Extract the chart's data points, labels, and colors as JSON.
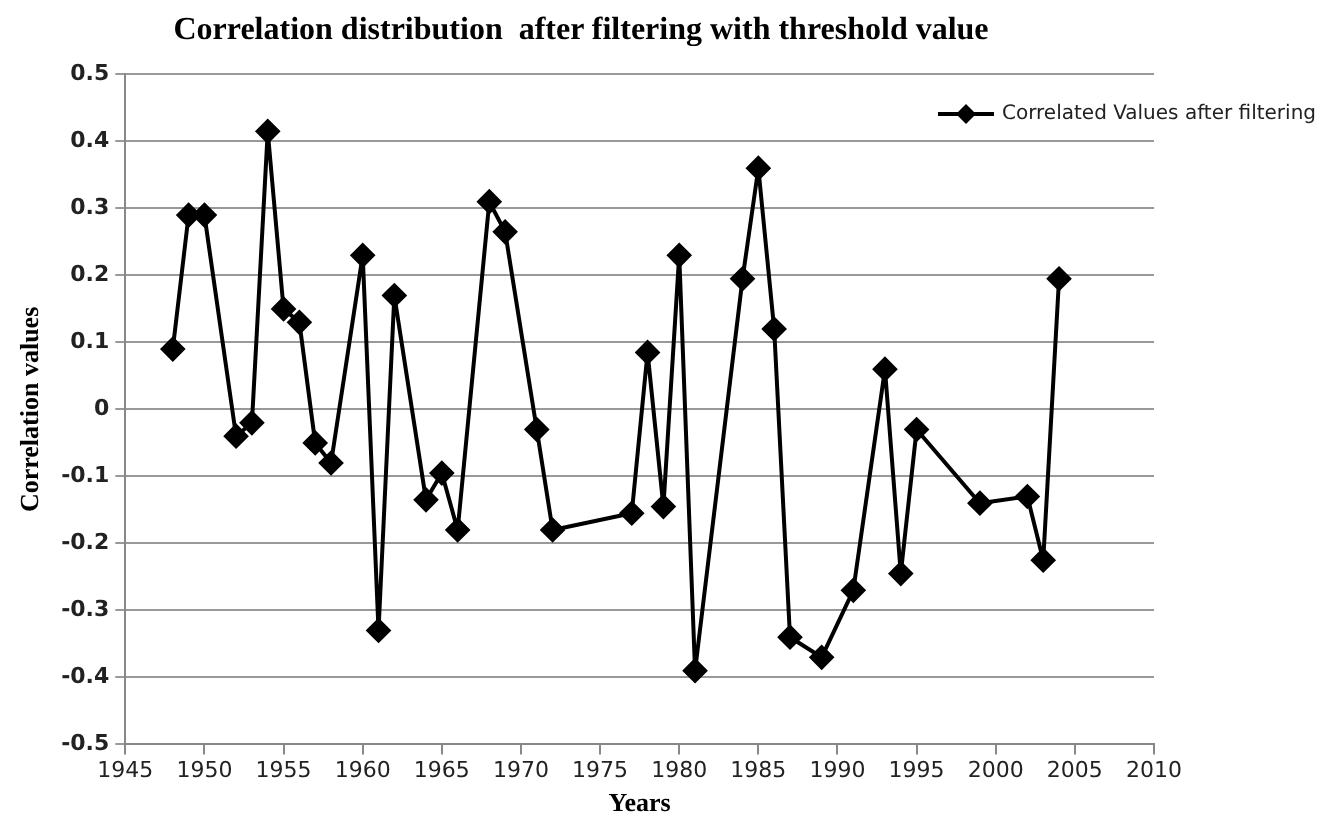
{
  "chart_data": {
    "type": "line",
    "title": "Correlation distribution  after filtering with threshold value",
    "xlabel": "Years",
    "ylabel": "Correlation values",
    "x": [
      1948,
      1949,
      1950,
      1952,
      1953,
      1954,
      1955,
      1956,
      1957,
      1958,
      1960,
      1961,
      1962,
      1964,
      1965,
      1966,
      1968,
      1969,
      1971,
      1972,
      1977,
      1978,
      1979,
      1980,
      1981,
      1984,
      1985,
      1986,
      1987,
      1989,
      1991,
      1993,
      1994,
      1995,
      1999,
      2002,
      2003,
      2004
    ],
    "series": [
      {
        "name": "Correlated Values after filtering",
        "color": "#000000",
        "values": [
          0.09,
          0.29,
          0.29,
          -0.04,
          -0.02,
          0.415,
          0.15,
          0.13,
          -0.05,
          -0.08,
          0.23,
          -0.33,
          0.17,
          -0.135,
          -0.095,
          -0.18,
          0.31,
          0.265,
          -0.03,
          -0.18,
          -0.155,
          0.085,
          -0.145,
          0.23,
          -0.39,
          0.195,
          0.36,
          0.12,
          -0.34,
          -0.37,
          -0.27,
          0.06,
          -0.245,
          -0.03,
          -0.14,
          -0.13,
          -0.225,
          0.195
        ]
      }
    ],
    "xlim": [
      1945,
      2010
    ],
    "xticks": [
      1945,
      1950,
      1955,
      1960,
      1965,
      1970,
      1975,
      1980,
      1985,
      1990,
      1995,
      2000,
      2005,
      2010
    ],
    "ylim": [
      -0.5,
      0.5
    ],
    "yticks": [
      -0.5,
      -0.4,
      -0.3,
      -0.2,
      -0.1,
      0,
      0.1,
      0.2,
      0.3,
      0.4,
      0.5
    ],
    "grid": "y",
    "legend": "top right",
    "marker": "diamond",
    "line_style": "solid"
  }
}
